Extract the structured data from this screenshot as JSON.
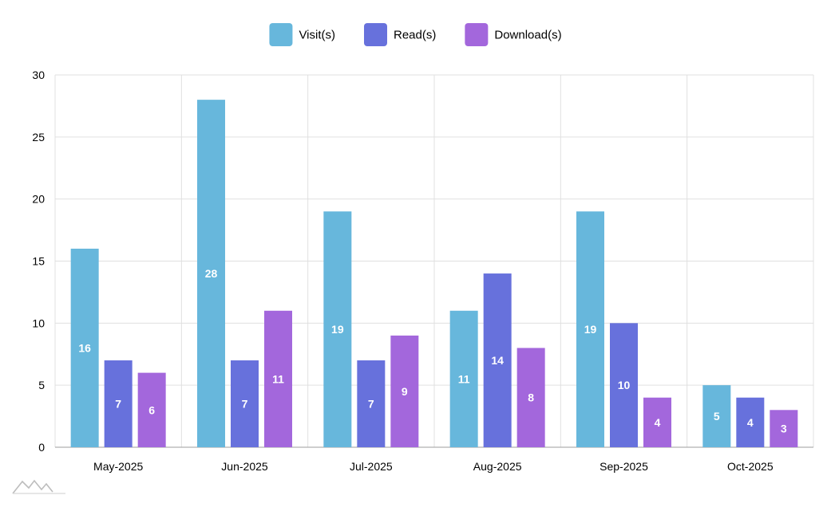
{
  "chart_data": {
    "type": "bar",
    "categories": [
      "May-2025",
      "Jun-2025",
      "Jul-2025",
      "Aug-2025",
      "Sep-2025",
      "Oct-2025"
    ],
    "series": [
      {
        "name": "Visit(s)",
        "values": [
          16,
          28,
          19,
          11,
          19,
          5
        ],
        "color": "#67b7dc"
      },
      {
        "name": "Read(s)",
        "values": [
          7,
          7,
          7,
          14,
          10,
          4
        ],
        "color": "#6771dc"
      },
      {
        "name": "Download(s)",
        "values": [
          6,
          11,
          9,
          8,
          4,
          3
        ],
        "color": "#a367dc"
      }
    ],
    "ylim": [
      0,
      30
    ],
    "yticks": [
      0,
      5,
      10,
      15,
      20,
      25,
      30
    ],
    "grid": true,
    "legend_position": "top-center",
    "data_labels": true
  },
  "watermark": {
    "icon": "amcharts-logo-icon"
  }
}
